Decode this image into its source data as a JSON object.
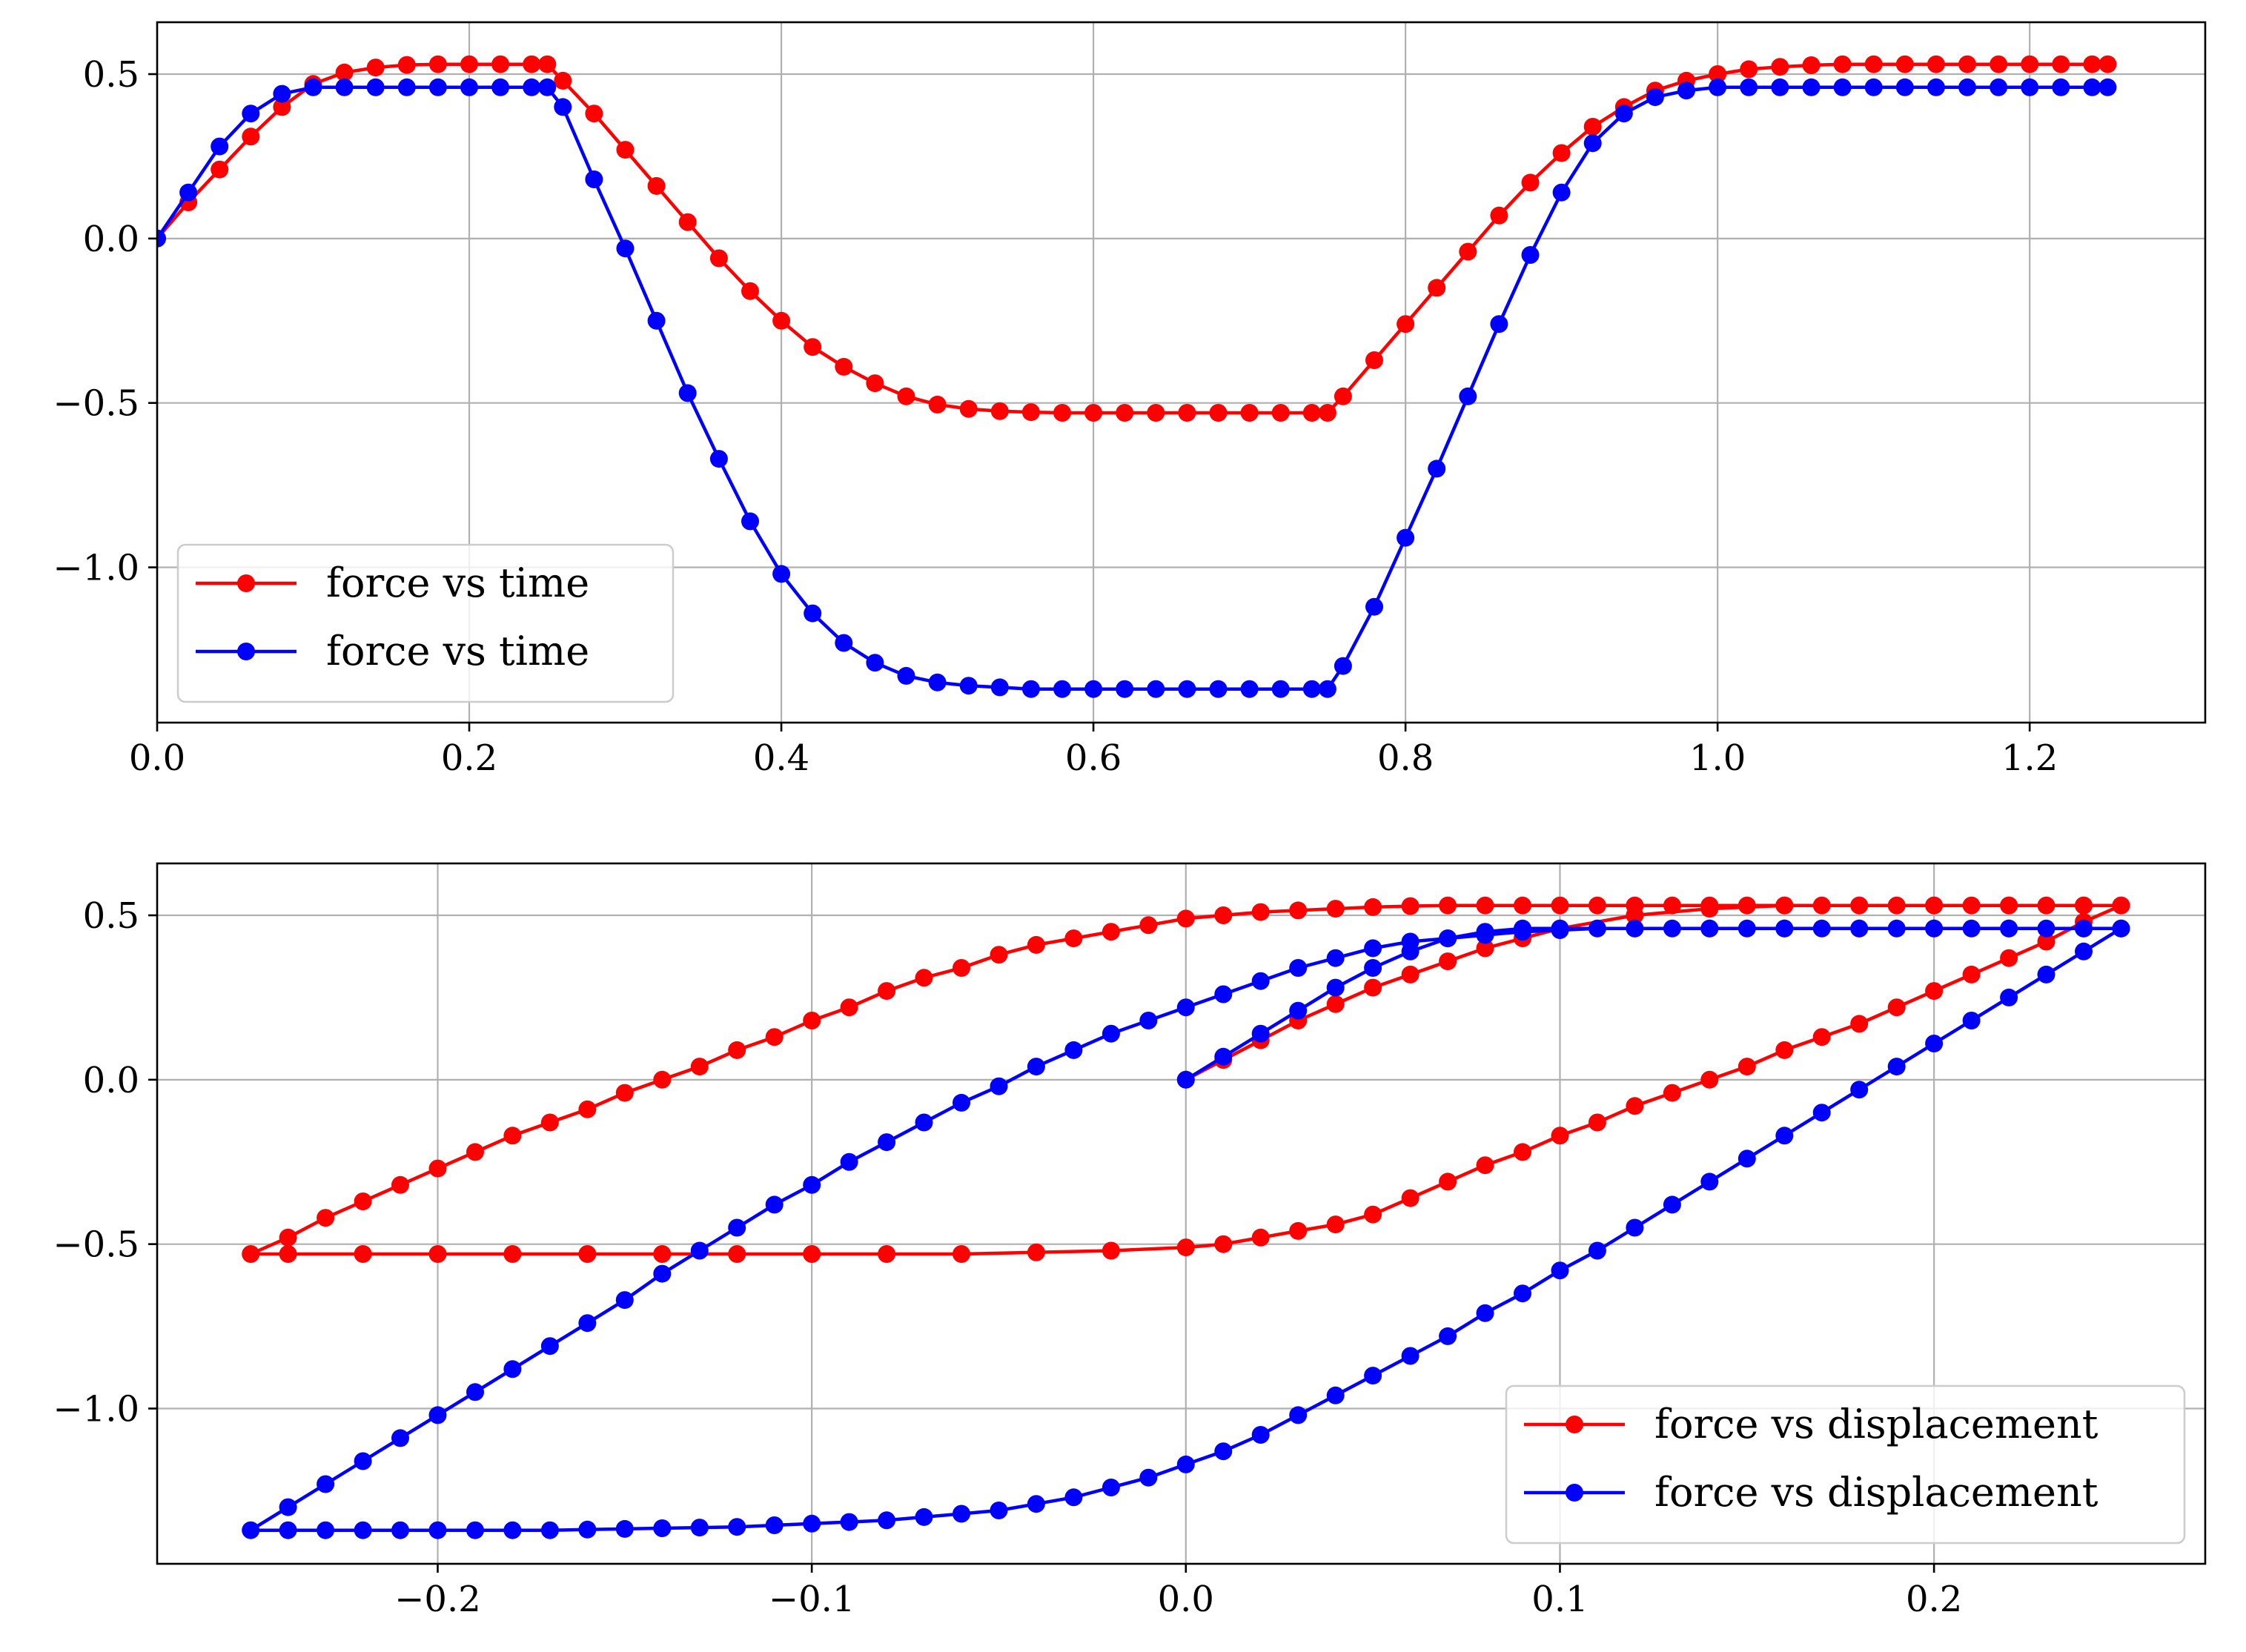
{
  "chart_data": [
    {
      "type": "line",
      "xlim": [
        0.0,
        1.3125
      ],
      "ylim": [
        -1.4722,
        0.6578
      ],
      "grid": true,
      "legend_position": "lower-left",
      "x_ticks": [
        0.0,
        0.2,
        0.4,
        0.6,
        0.8,
        1.0,
        1.2
      ],
      "x_tick_labels": [
        "0.0",
        "0.2",
        "0.4",
        "0.6",
        "0.8",
        "1.0",
        "1.2"
      ],
      "y_ticks": [
        -1.0,
        -0.5,
        0.0,
        0.5
      ],
      "y_tick_labels": [
        "−1.0",
        "−0.5",
        "0.0",
        "0.5"
      ],
      "series": [
        {
          "name": "force vs time",
          "color": "#ff0000",
          "marker": "circle",
          "x": [
            0.0,
            0.02,
            0.04,
            0.06,
            0.08,
            0.1,
            0.12,
            0.14,
            0.16,
            0.18,
            0.2,
            0.22,
            0.24,
            0.25,
            0.26,
            0.28,
            0.3,
            0.32,
            0.34,
            0.36,
            0.38,
            0.4,
            0.42,
            0.44,
            0.46,
            0.48,
            0.5,
            0.52,
            0.54,
            0.56,
            0.58,
            0.6,
            0.62,
            0.64,
            0.66,
            0.68,
            0.7,
            0.72,
            0.74,
            0.75,
            0.76,
            0.78,
            0.8,
            0.82,
            0.84,
            0.86,
            0.88,
            0.9,
            0.92,
            0.94,
            0.96,
            0.98,
            1.0,
            1.02,
            1.04,
            1.06,
            1.08,
            1.1,
            1.12,
            1.14,
            1.16,
            1.18,
            1.2,
            1.22,
            1.24,
            1.25
          ],
          "y": [
            0.0,
            0.11,
            0.21,
            0.31,
            0.4,
            0.47,
            0.505,
            0.52,
            0.528,
            0.53,
            0.53,
            0.53,
            0.53,
            0.53,
            0.48,
            0.38,
            0.27,
            0.16,
            0.05,
            -0.06,
            -0.16,
            -0.25,
            -0.33,
            -0.39,
            -0.44,
            -0.48,
            -0.505,
            -0.518,
            -0.525,
            -0.528,
            -0.53,
            -0.53,
            -0.53,
            -0.53,
            -0.53,
            -0.53,
            -0.53,
            -0.53,
            -0.53,
            -0.53,
            -0.48,
            -0.37,
            -0.26,
            -0.15,
            -0.04,
            0.07,
            0.17,
            0.26,
            0.34,
            0.4,
            0.45,
            0.48,
            0.5,
            0.515,
            0.522,
            0.527,
            0.53,
            0.53,
            0.53,
            0.53,
            0.53,
            0.53,
            0.53,
            0.53,
            0.53,
            0.53
          ]
        },
        {
          "name": "force vs time",
          "color": "#0000ff",
          "marker": "circle",
          "x": [
            0.0,
            0.02,
            0.04,
            0.06,
            0.08,
            0.1,
            0.12,
            0.14,
            0.16,
            0.18,
            0.2,
            0.22,
            0.24,
            0.25,
            0.26,
            0.28,
            0.3,
            0.32,
            0.34,
            0.36,
            0.38,
            0.4,
            0.42,
            0.44,
            0.46,
            0.48,
            0.5,
            0.52,
            0.54,
            0.56,
            0.58,
            0.6,
            0.62,
            0.64,
            0.66,
            0.68,
            0.7,
            0.72,
            0.74,
            0.75,
            0.76,
            0.78,
            0.8,
            0.82,
            0.84,
            0.86,
            0.88,
            0.9,
            0.92,
            0.94,
            0.96,
            0.98,
            1.0,
            1.02,
            1.04,
            1.06,
            1.08,
            1.1,
            1.12,
            1.14,
            1.16,
            1.18,
            1.2,
            1.22,
            1.24,
            1.25
          ],
          "y": [
            0.0,
            0.14,
            0.28,
            0.38,
            0.44,
            0.46,
            0.46,
            0.46,
            0.46,
            0.46,
            0.46,
            0.46,
            0.46,
            0.46,
            0.4,
            0.18,
            -0.03,
            -0.25,
            -0.47,
            -0.67,
            -0.86,
            -1.02,
            -1.14,
            -1.23,
            -1.29,
            -1.33,
            -1.35,
            -1.36,
            -1.365,
            -1.37,
            -1.37,
            -1.37,
            -1.37,
            -1.37,
            -1.37,
            -1.37,
            -1.37,
            -1.37,
            -1.37,
            -1.37,
            -1.3,
            -1.12,
            -0.91,
            -0.7,
            -0.48,
            -0.26,
            -0.05,
            0.14,
            0.29,
            0.38,
            0.43,
            0.45,
            0.46,
            0.46,
            0.46,
            0.46,
            0.46,
            0.46,
            0.46,
            0.46,
            0.46,
            0.46,
            0.46,
            0.46,
            0.46,
            0.46
          ]
        }
      ]
    },
    {
      "type": "line",
      "xlim": [
        -0.275,
        0.2725
      ],
      "ylim": [
        -1.4722,
        0.6578
      ],
      "grid": true,
      "legend_position": "lower-right",
      "x_ticks": [
        -0.2,
        -0.1,
        0.0,
        0.1,
        0.2
      ],
      "x_tick_labels": [
        "−0.2",
        "−0.1",
        "0.0",
        "0.1",
        "0.2"
      ],
      "y_ticks": [
        -1.0,
        -0.5,
        0.0,
        0.5
      ],
      "y_tick_labels": [
        "−1.0",
        "−0.5",
        "0.0",
        "0.5"
      ],
      "series": [
        {
          "name": "force vs displacement",
          "color": "#ff0000",
          "marker": "circle",
          "x": [
            0.0,
            0.01,
            0.02,
            0.03,
            0.04,
            0.05,
            0.06,
            0.07,
            0.08,
            0.09,
            0.1,
            0.12,
            0.14,
            0.16,
            0.18,
            0.2,
            0.22,
            0.24,
            0.25,
            0.24,
            0.23,
            0.22,
            0.21,
            0.2,
            0.19,
            0.18,
            0.17,
            0.16,
            0.15,
            0.14,
            0.13,
            0.12,
            0.11,
            0.1,
            0.09,
            0.08,
            0.07,
            0.06,
            0.05,
            0.04,
            0.03,
            0.02,
            0.01,
            0.0,
            -0.02,
            -0.04,
            -0.06,
            -0.08,
            -0.1,
            -0.12,
            -0.14,
            -0.16,
            -0.18,
            -0.2,
            -0.22,
            -0.24,
            -0.25,
            -0.24,
            -0.23,
            -0.22,
            -0.21,
            -0.2,
            -0.19,
            -0.18,
            -0.17,
            -0.16,
            -0.15,
            -0.14,
            -0.13,
            -0.12,
            -0.11,
            -0.1,
            -0.09,
            -0.08,
            -0.07,
            -0.06,
            -0.05,
            -0.04,
            -0.03,
            -0.02,
            -0.01,
            0.0,
            0.01,
            0.02,
            0.03,
            0.04,
            0.05,
            0.06,
            0.07,
            0.08,
            0.09,
            0.1,
            0.11,
            0.12,
            0.13,
            0.14,
            0.15,
            0.16,
            0.17,
            0.18,
            0.19,
            0.2,
            0.21,
            0.22,
            0.23,
            0.24,
            0.25
          ],
          "y": [
            0.0,
            0.06,
            0.12,
            0.18,
            0.23,
            0.28,
            0.32,
            0.36,
            0.4,
            0.43,
            0.46,
            0.5,
            0.52,
            0.53,
            0.53,
            0.53,
            0.53,
            0.53,
            0.53,
            0.48,
            0.42,
            0.37,
            0.32,
            0.27,
            0.22,
            0.17,
            0.13,
            0.09,
            0.04,
            0.0,
            -0.04,
            -0.08,
            -0.13,
            -0.17,
            -0.22,
            -0.26,
            -0.31,
            -0.36,
            -0.41,
            -0.44,
            -0.46,
            -0.48,
            -0.5,
            -0.51,
            -0.52,
            -0.525,
            -0.53,
            -0.53,
            -0.53,
            -0.53,
            -0.53,
            -0.53,
            -0.53,
            -0.53,
            -0.53,
            -0.53,
            -0.53,
            -0.48,
            -0.42,
            -0.37,
            -0.32,
            -0.27,
            -0.22,
            -0.17,
            -0.13,
            -0.09,
            -0.04,
            0.0,
            0.04,
            0.09,
            0.13,
            0.18,
            0.22,
            0.27,
            0.31,
            0.34,
            0.38,
            0.41,
            0.43,
            0.45,
            0.47,
            0.49,
            0.5,
            0.51,
            0.515,
            0.52,
            0.525,
            0.528,
            0.53,
            0.53,
            0.53,
            0.53,
            0.53,
            0.53,
            0.53,
            0.53,
            0.53,
            0.53,
            0.53,
            0.53,
            0.53,
            0.53,
            0.53,
            0.53,
            0.53,
            0.53,
            0.53
          ]
        },
        {
          "name": "force vs displacement",
          "color": "#0000ff",
          "marker": "circle",
          "x": [
            0.0,
            0.01,
            0.02,
            0.03,
            0.04,
            0.05,
            0.06,
            0.07,
            0.08,
            0.09,
            0.1,
            0.12,
            0.14,
            0.16,
            0.18,
            0.2,
            0.22,
            0.24,
            0.25,
            0.24,
            0.23,
            0.22,
            0.21,
            0.2,
            0.19,
            0.18,
            0.17,
            0.16,
            0.15,
            0.14,
            0.13,
            0.12,
            0.11,
            0.1,
            0.09,
            0.08,
            0.07,
            0.06,
            0.05,
            0.04,
            0.03,
            0.02,
            0.01,
            0.0,
            -0.01,
            -0.02,
            -0.03,
            -0.04,
            -0.05,
            -0.06,
            -0.07,
            -0.08,
            -0.09,
            -0.1,
            -0.11,
            -0.12,
            -0.13,
            -0.14,
            -0.15,
            -0.16,
            -0.17,
            -0.18,
            -0.19,
            -0.2,
            -0.21,
            -0.22,
            -0.23,
            -0.24,
            -0.25,
            -0.24,
            -0.23,
            -0.22,
            -0.21,
            -0.2,
            -0.19,
            -0.18,
            -0.17,
            -0.16,
            -0.15,
            -0.14,
            -0.13,
            -0.12,
            -0.11,
            -0.1,
            -0.09,
            -0.08,
            -0.07,
            -0.06,
            -0.05,
            -0.04,
            -0.03,
            -0.02,
            -0.01,
            0.0,
            0.01,
            0.02,
            0.03,
            0.04,
            0.05,
            0.06,
            0.07,
            0.08,
            0.09,
            0.1,
            0.11,
            0.12,
            0.13,
            0.14,
            0.15,
            0.16,
            0.17,
            0.18,
            0.19,
            0.2,
            0.21,
            0.22,
            0.23,
            0.24,
            0.25
          ],
          "y": [
            0.0,
            0.07,
            0.14,
            0.21,
            0.28,
            0.34,
            0.39,
            0.43,
            0.45,
            0.46,
            0.46,
            0.46,
            0.46,
            0.46,
            0.46,
            0.46,
            0.46,
            0.46,
            0.46,
            0.39,
            0.32,
            0.25,
            0.18,
            0.11,
            0.04,
            -0.03,
            -0.1,
            -0.17,
            -0.24,
            -0.31,
            -0.38,
            -0.45,
            -0.52,
            -0.58,
            -0.65,
            -0.71,
            -0.78,
            -0.84,
            -0.9,
            -0.96,
            -1.02,
            -1.08,
            -1.13,
            -1.17,
            -1.21,
            -1.24,
            -1.27,
            -1.29,
            -1.31,
            -1.32,
            -1.33,
            -1.34,
            -1.345,
            -1.35,
            -1.355,
            -1.36,
            -1.362,
            -1.364,
            -1.366,
            -1.368,
            -1.37,
            -1.37,
            -1.37,
            -1.37,
            -1.37,
            -1.37,
            -1.37,
            -1.37,
            -1.37,
            -1.3,
            -1.23,
            -1.16,
            -1.09,
            -1.02,
            -0.95,
            -0.88,
            -0.81,
            -0.74,
            -0.67,
            -0.59,
            -0.52,
            -0.45,
            -0.38,
            -0.32,
            -0.25,
            -0.19,
            -0.13,
            -0.07,
            -0.02,
            0.04,
            0.09,
            0.14,
            0.18,
            0.22,
            0.26,
            0.3,
            0.34,
            0.37,
            0.4,
            0.42,
            0.43,
            0.44,
            0.45,
            0.455,
            0.46,
            0.46,
            0.46,
            0.46,
            0.46,
            0.46,
            0.46,
            0.46,
            0.46,
            0.46,
            0.46,
            0.46,
            0.46,
            0.46,
            0.46
          ]
        }
      ]
    }
  ]
}
